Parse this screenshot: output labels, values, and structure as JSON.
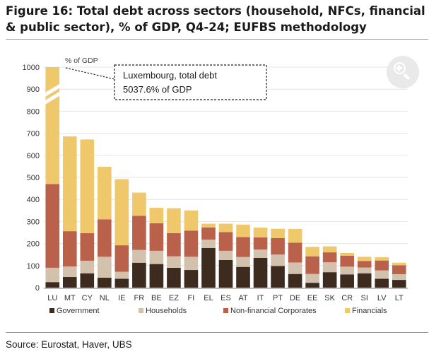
{
  "figure": {
    "title": "Figure 16: Total debt across sectors (household, NFCs, financial & public sector), % of GDP, Q4-24; EUFBS methodology",
    "source": "Source: Eurostat, Haver, UBS"
  },
  "zoom_button": {
    "icon": "zoom-in-icon"
  },
  "chart_data": {
    "type": "bar",
    "stacked": true,
    "title": "Total debt across sectors (household, NFCs, financial & public sector), % of GDP, Q4-24; EUFBS methodology",
    "ylabel": "% of GDP",
    "ylim": [
      0,
      1000
    ],
    "yticks": [
      0,
      100,
      200,
      300,
      400,
      500,
      600,
      700,
      800,
      900,
      1000
    ],
    "axis_break": true,
    "categories": [
      "LU",
      "MT",
      "CY",
      "NL",
      "IE",
      "FR",
      "BE",
      "EZ",
      "FI",
      "EL",
      "ES",
      "AT",
      "IT",
      "PT",
      "DE",
      "EE",
      "SK",
      "CR",
      "SI",
      "LV",
      "LT"
    ],
    "series": [
      {
        "name": "Government",
        "color": "#3d2b20",
        "values": [
          25,
          48,
          65,
          45,
          40,
          113,
          107,
          90,
          80,
          180,
          125,
          94,
          135,
          98,
          62,
          22,
          70,
          60,
          65,
          40,
          35
        ]
      },
      {
        "name": "Households",
        "color": "#d2c1ac",
        "values": [
          65,
          48,
          57,
          95,
          32,
          58,
          60,
          52,
          60,
          38,
          42,
          45,
          38,
          52,
          52,
          40,
          45,
          35,
          26,
          38,
          26
        ]
      },
      {
        "name": "Non-financial Corporates",
        "color": "#b9614a",
        "values": [
          380,
          160,
          125,
          170,
          120,
          155,
          125,
          105,
          118,
          55,
          85,
          90,
          55,
          75,
          90,
          80,
          45,
          50,
          30,
          45,
          40
        ]
      },
      {
        "name": "Financials",
        "color": "#efc86c",
        "values": [
          4567.6,
          430,
          425,
          238,
          300,
          105,
          70,
          113,
          92,
          17,
          38,
          57,
          44,
          42,
          62,
          43,
          27,
          12,
          19,
          15,
          12
        ]
      }
    ],
    "annotation": {
      "text": "Luxembourg, total debt 5037.6% of GDP",
      "line1": "Luxembourg, total debt",
      "line2": "5037.6% of GDP",
      "target": "LU"
    },
    "legend": {
      "position": "bottom"
    }
  }
}
